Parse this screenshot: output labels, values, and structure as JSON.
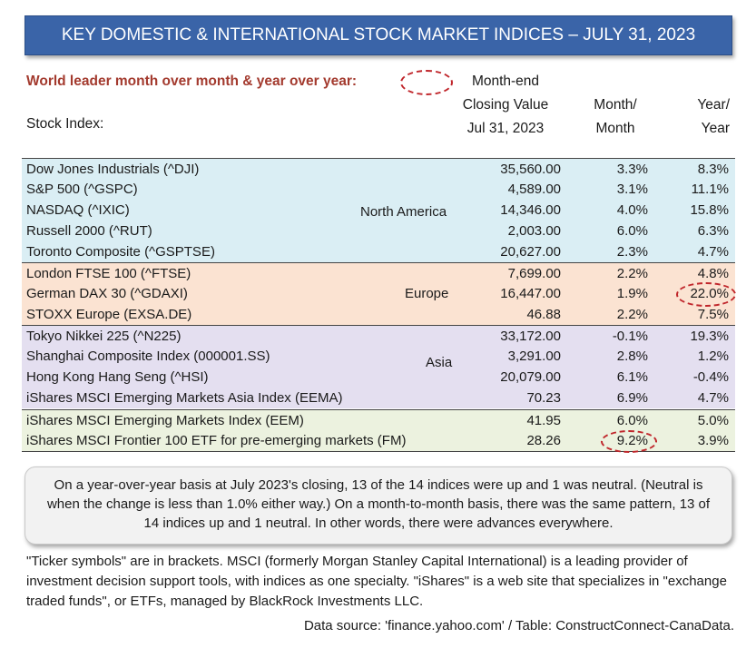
{
  "title": "KEY DOMESTIC & INTERNATIONAL STOCK MARKET INDICES – JULY 31, 2023",
  "leader_label": "World leader month over month & year over year:",
  "headers": {
    "stock_index": "Stock Index:",
    "closing_line1": "Month-end",
    "closing_line2": "Closing Value",
    "closing_line3": "Jul 31, 2023",
    "mm_line1": "Month/",
    "mm_line2": "Month",
    "yy_line1": "Year/",
    "yy_line2": "Year"
  },
  "regions": {
    "north_america": "North America",
    "europe": "Europe",
    "asia": "Asia"
  },
  "rows": [
    {
      "name": "Dow Jones Industrials (^DJI)",
      "value": "35,560.00",
      "mm": "3.3%",
      "yy": "8.3%"
    },
    {
      "name": "S&P 500 (^GSPC)",
      "value": "4,589.00",
      "mm": "3.1%",
      "yy": "11.1%"
    },
    {
      "name": "NASDAQ (^IXIC)",
      "value": "14,346.00",
      "mm": "4.0%",
      "yy": "15.8%"
    },
    {
      "name": "Russell  2000 (^RUT)",
      "value": "2,003.00",
      "mm": "6.0%",
      "yy": "6.3%"
    },
    {
      "name": "Toronto Composite (^GSPTSE)",
      "value": "20,627.00",
      "mm": "2.3%",
      "yy": "4.7%"
    },
    {
      "name": "London FTSE 100 (^FTSE)",
      "value": "7,699.00",
      "mm": "2.2%",
      "yy": "4.8%"
    },
    {
      "name": "German DAX 30 (^GDAXI)",
      "value": "16,447.00",
      "mm": "1.9%",
      "yy": "22.0%"
    },
    {
      "name": "STOXX Europe (EXSA.DE)",
      "value": "46.88",
      "mm": "2.2%",
      "yy": "7.5%"
    },
    {
      "name": "Tokyo Nikkei 225 (^N225)",
      "value": "33,172.00",
      "mm": "-0.1%",
      "yy": "19.3%"
    },
    {
      "name": "Shanghai Composite Index (000001.SS)",
      "value": "3,291.00",
      "mm": "2.8%",
      "yy": "1.2%"
    },
    {
      "name": "Hong Kong Hang Seng (^HSI)",
      "value": "20,079.00",
      "mm": "6.1%",
      "yy": "-0.4%"
    },
    {
      "name": "iShares MSCI Emerging Markets Asia Index (EEMA)",
      "value": "70.23",
      "mm": "6.9%",
      "yy": "4.7%"
    },
    {
      "name": "iShares MSCI Emerging Markets Index (EEM)",
      "value": "41.95",
      "mm": "6.0%",
      "yy": "5.0%"
    },
    {
      "name": "iShares MSCI Frontier 100 ETF for pre-emerging markets (FM)",
      "value": "28.26",
      "mm": "9.2%",
      "yy": "3.9%"
    }
  ],
  "summary": "On a year-over-year basis at July 2023's closing, 13 of the 14 indices were up and 1 was neutral. (Neutral is when the change is less than 1.0% either way.) On a month-to-month basis, there was the same pattern, 13 of 14 indices up and 1 neutral. In other words, there were advances everywhere.",
  "footnote": "\"Ticker symbols\" are in brackets. MSCI (formerly Morgan Stanley Capital International) is a leading provider of investment decision support tools, with indices as one specialty. \"iShares\" is a web site that specializes in \"exchange traded funds\", or ETFs, managed by BlackRock Investments LLC.",
  "source": "Data source: 'finance.yahoo.com' / Table: ConstructConnect-CanaData.",
  "colors": {
    "banner": "#3a64a8",
    "leader_text": "#a33a2e",
    "highlight_ring": "#c0262b",
    "north_america_fill": "#daeef4",
    "europe_fill": "#fbe3d2",
    "asia_fill": "#e4dff0",
    "emerging_fill": "#ecf2df"
  }
}
